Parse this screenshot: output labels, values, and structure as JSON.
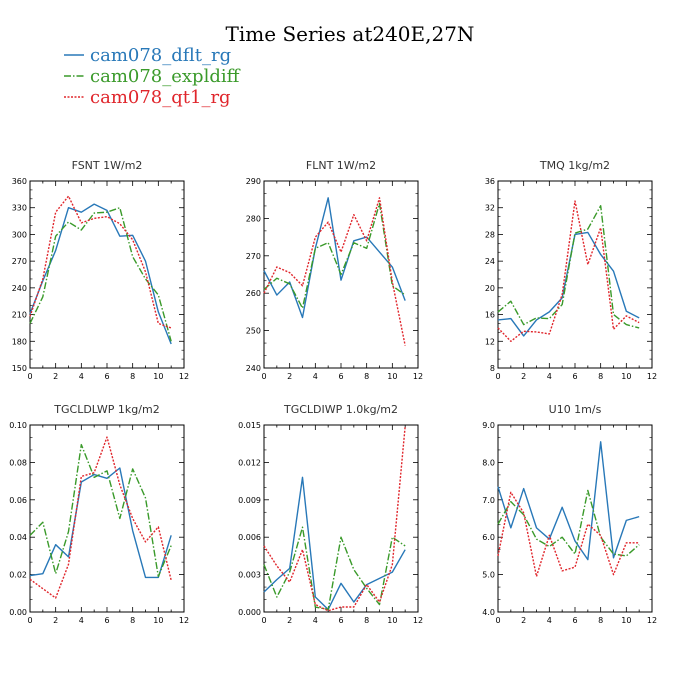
{
  "figure": {
    "title": "Time Series at240E,27N"
  },
  "legend": [
    {
      "label": "cam078_dflt_rg",
      "color": "#2878b8",
      "dash": "solid"
    },
    {
      "label": "cam078_expldiff",
      "color": "#3a9a2a",
      "dash": "dashdot"
    },
    {
      "label": "cam078_qt1_rg",
      "color": "#e0262c",
      "dash": "dotted"
    }
  ],
  "chart_data": [
    {
      "type": "line",
      "title": "FSNT   1W/m2",
      "x": [
        0,
        1,
        2,
        3,
        4,
        5,
        6,
        7,
        8,
        9,
        10,
        11
      ],
      "xlim": [
        0,
        12
      ],
      "xticks": [
        0,
        2,
        4,
        6,
        8,
        10,
        12
      ],
      "ylim": [
        150,
        360
      ],
      "yticks": [
        150,
        180,
        210,
        240,
        270,
        300,
        330,
        360
      ],
      "ytick_labels": [
        "150",
        "180",
        "210",
        "240",
        "270",
        "300",
        "330",
        "360"
      ],
      "series": [
        {
          "name": "cam078_dflt_rg",
          "values": [
            211,
            248,
            282,
            330,
            325,
            334,
            327,
            298,
            299,
            270,
            213,
            177
          ]
        },
        {
          "name": "cam078_expldiff",
          "values": [
            200,
            230,
            298,
            314,
            305,
            324,
            325,
            330,
            275,
            250,
            232,
            180
          ]
        },
        {
          "name": "cam078_qt1_rg",
          "values": [
            208,
            250,
            325,
            343,
            313,
            318,
            320,
            312,
            294,
            258,
            200,
            195
          ]
        }
      ]
    },
    {
      "type": "line",
      "title": "FLNT   1W/m2",
      "x": [
        0,
        1,
        2,
        3,
        4,
        5,
        6,
        7,
        8,
        9,
        10,
        11
      ],
      "xlim": [
        0,
        12
      ],
      "xticks": [
        0,
        2,
        4,
        6,
        8,
        10,
        12
      ],
      "ylim": [
        240,
        290
      ],
      "yticks": [
        240,
        250,
        260,
        270,
        280,
        290
      ],
      "ytick_labels": [
        "240",
        "250",
        "260",
        "270",
        "280",
        "290"
      ],
      "series": [
        {
          "name": "cam078_dflt_rg",
          "values": [
            266,
            259.5,
            263,
            253.5,
            272,
            285.5,
            263.5,
            274,
            275,
            271,
            267,
            258
          ]
        },
        {
          "name": "cam078_expldiff",
          "values": [
            261,
            264,
            262.5,
            256,
            272,
            273.5,
            265,
            273.5,
            272,
            284,
            262,
            259.5
          ]
        },
        {
          "name": "cam078_qt1_rg",
          "values": [
            260,
            267,
            265.5,
            262,
            275,
            279,
            271,
            281,
            274,
            285.5,
            263,
            246
          ]
        }
      ]
    },
    {
      "type": "line",
      "title": "TMQ   1kg/m2",
      "x": [
        0,
        1,
        2,
        3,
        4,
        5,
        6,
        7,
        8,
        9,
        10,
        11
      ],
      "xlim": [
        0,
        12
      ],
      "xticks": [
        0,
        2,
        4,
        6,
        8,
        10,
        12
      ],
      "ylim": [
        8,
        36
      ],
      "yticks": [
        8,
        12,
        16,
        20,
        24,
        28,
        32,
        36
      ],
      "ytick_labels": [
        "8",
        "12",
        "16",
        "20",
        "24",
        "28",
        "32",
        "36"
      ],
      "series": [
        {
          "name": "cam078_dflt_rg",
          "values": [
            15.2,
            15.4,
            12.8,
            15.2,
            16.4,
            18.5,
            28,
            28.3,
            25,
            22.5,
            16.5,
            15.5
          ]
        },
        {
          "name": "cam078_expldiff",
          "values": [
            16.4,
            18,
            14.5,
            15.5,
            15.4,
            17.5,
            28.2,
            28.8,
            32.3,
            16,
            14.5,
            14
          ]
        },
        {
          "name": "cam078_qt1_rg",
          "values": [
            14,
            12,
            13.5,
            13.4,
            13.1,
            19,
            33,
            23.5,
            29,
            13.8,
            15.8,
            14.8
          ]
        }
      ]
    },
    {
      "type": "line",
      "title": "TGCLDLWP   1kg/m2",
      "x": [
        0,
        1,
        2,
        3,
        4,
        5,
        6,
        7,
        8,
        9,
        10,
        11
      ],
      "xlim": [
        0,
        12
      ],
      "xticks": [
        0,
        2,
        4,
        6,
        8,
        10,
        12
      ],
      "ylim": [
        0,
        0.1
      ],
      "yticks": [
        0,
        0.02,
        0.04,
        0.06,
        0.08,
        0.1
      ],
      "ytick_labels": [
        "0.00",
        "0.02",
        "0.04",
        "0.06",
        "0.08",
        "0.10"
      ],
      "series": [
        {
          "name": "cam078_dflt_rg",
          "values": [
            0.0195,
            0.0205,
            0.036,
            0.0295,
            0.0695,
            0.0735,
            0.0715,
            0.077,
            0.0435,
            0.0185,
            0.0185,
            0.041
          ]
        },
        {
          "name": "cam078_expldiff",
          "values": [
            0.041,
            0.048,
            0.0205,
            0.043,
            0.0895,
            0.072,
            0.0755,
            0.05,
            0.0765,
            0.061,
            0.019,
            0.0355
          ]
        },
        {
          "name": "cam078_qt1_rg",
          "values": [
            0.0175,
            0.0125,
            0.0075,
            0.0255,
            0.0725,
            0.0745,
            0.0935,
            0.068,
            0.05,
            0.0375,
            0.0455,
            0.017
          ]
        }
      ]
    },
    {
      "type": "line",
      "title": "TGCLDIWP   1.0kg/m2",
      "x": [
        0,
        1,
        2,
        3,
        4,
        5,
        6,
        7,
        8,
        9,
        10,
        11
      ],
      "xlim": [
        0,
        12
      ],
      "xticks": [
        0,
        2,
        4,
        6,
        8,
        10,
        12
      ],
      "ylim": [
        0,
        0.015
      ],
      "yticks": [
        0,
        0.003,
        0.006,
        0.009,
        0.012,
        0.015
      ],
      "ytick_labels": [
        "0.000",
        "0.003",
        "0.006",
        "0.009",
        "0.012",
        "0.015"
      ],
      "series": [
        {
          "name": "cam078_dflt_rg",
          "values": [
            0.0016,
            0.0026,
            0.0035,
            0.0108,
            0.0012,
            0.0002,
            0.0023,
            0.0008,
            0.0022,
            0.0027,
            0.0032,
            0.005
          ]
        },
        {
          "name": "cam078_expldiff",
          "values": [
            0.0038,
            0.0012,
            0.0032,
            0.0068,
            0.0004,
            0.0002,
            0.006,
            0.0034,
            0.0019,
            0.0006,
            0.006,
            0.0053
          ]
        },
        {
          "name": "cam078_qt1_rg",
          "values": [
            0.0053,
            0.0037,
            0.0024,
            0.005,
            0.0006,
            0.0001,
            0.0004,
            0.0004,
            0.0022,
            0.0008,
            0.0038,
            0.0149
          ]
        }
      ]
    },
    {
      "type": "line",
      "title": "U10   1m/s",
      "x": [
        0,
        1,
        2,
        3,
        4,
        5,
        6,
        7,
        8,
        9,
        10,
        11
      ],
      "xlim": [
        0,
        12
      ],
      "xticks": [
        0,
        2,
        4,
        6,
        8,
        10,
        12
      ],
      "ylim": [
        4,
        9
      ],
      "yticks": [
        4,
        5,
        6,
        7,
        8,
        9
      ],
      "ytick_labels": [
        "4.0",
        "5.0",
        "6.0",
        "7.0",
        "8.0",
        "9.0"
      ],
      "series": [
        {
          "name": "cam078_dflt_rg",
          "values": [
            7.35,
            6.25,
            7.3,
            6.25,
            5.95,
            6.8,
            5.9,
            5.4,
            8.55,
            5.45,
            6.45,
            6.55
          ]
        },
        {
          "name": "cam078_expldiff",
          "values": [
            6.35,
            6.95,
            6.6,
            5.95,
            5.75,
            6.0,
            5.55,
            7.25,
            6.0,
            5.55,
            5.5,
            5.8
          ]
        },
        {
          "name": "cam078_qt1_rg",
          "values": [
            5.5,
            7.2,
            6.65,
            4.95,
            6.05,
            5.1,
            5.2,
            6.35,
            6.05,
            5.0,
            5.85,
            5.85
          ]
        }
      ]
    }
  ]
}
